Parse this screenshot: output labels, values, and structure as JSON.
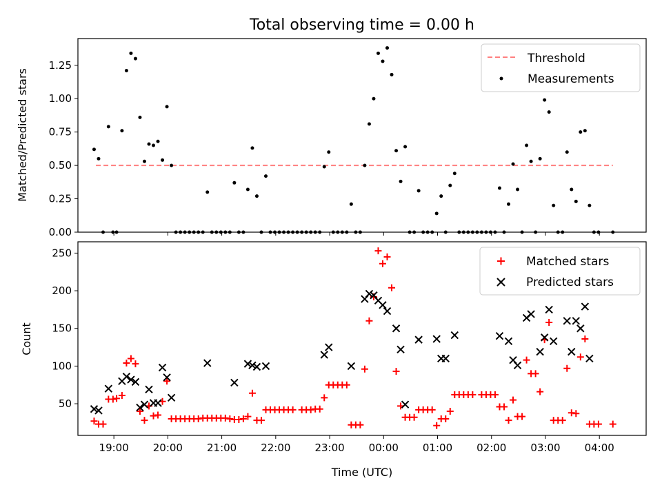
{
  "chart_data": [
    {
      "type": "scatter",
      "title": "Total observing time = 0.00 h",
      "ylabel": "Matched/Predicted stars",
      "xlabel": "",
      "xlim": [
        "18:20",
        "04:52"
      ],
      "ylim": [
        0,
        1.45
      ],
      "yticks": [
        "0.00",
        "0.25",
        "0.50",
        "0.75",
        "1.00",
        "1.25"
      ],
      "legend_position": "upper right",
      "legend": [
        "Threshold",
        "Measurements"
      ],
      "colors": {
        "threshold": "#ff7f7f",
        "measurements": "#000000"
      },
      "threshold": {
        "value": 0.5,
        "x_range": [
          "18:40",
          "04:15"
        ]
      },
      "measurements": [
        [
          "18:38",
          0.62
        ],
        [
          "18:43",
          0.55
        ],
        [
          "18:48",
          0.0
        ],
        [
          "18:54",
          0.79
        ],
        [
          "18:59",
          0.0
        ],
        [
          "19:03",
          0.0
        ],
        [
          "19:09",
          0.76
        ],
        [
          "19:14",
          1.21
        ],
        [
          "19:19",
          1.34
        ],
        [
          "19:24",
          1.3
        ],
        [
          "19:29",
          0.86
        ],
        [
          "19:34",
          0.53
        ],
        [
          "19:39",
          0.66
        ],
        [
          "19:44",
          0.65
        ],
        [
          "19:49",
          0.68
        ],
        [
          "19:54",
          0.54
        ],
        [
          "19:59",
          0.94
        ],
        [
          "20:04",
          0.5
        ],
        [
          "20:09",
          0.0
        ],
        [
          "20:14",
          0.0
        ],
        [
          "20:19",
          0.0
        ],
        [
          "20:24",
          0.0
        ],
        [
          "20:29",
          0.0
        ],
        [
          "20:34",
          0.0
        ],
        [
          "20:39",
          0.0
        ],
        [
          "20:44",
          0.3
        ],
        [
          "20:49",
          0.0
        ],
        [
          "20:54",
          0.0
        ],
        [
          "20:59",
          0.0
        ],
        [
          "21:04",
          0.0
        ],
        [
          "21:09",
          0.0
        ],
        [
          "21:14",
          0.37
        ],
        [
          "21:19",
          0.0
        ],
        [
          "21:24",
          0.0
        ],
        [
          "21:29",
          0.32
        ],
        [
          "21:34",
          0.63
        ],
        [
          "21:39",
          0.27
        ],
        [
          "21:44",
          0.0
        ],
        [
          "21:49",
          0.42
        ],
        [
          "21:54",
          0.0
        ],
        [
          "21:59",
          0.0
        ],
        [
          "22:04",
          0.0
        ],
        [
          "22:09",
          0.0
        ],
        [
          "22:14",
          0.0
        ],
        [
          "22:19",
          0.0
        ],
        [
          "22:24",
          0.0
        ],
        [
          "22:29",
          0.0
        ],
        [
          "22:34",
          0.0
        ],
        [
          "22:39",
          0.0
        ],
        [
          "22:44",
          0.0
        ],
        [
          "22:49",
          0.0
        ],
        [
          "22:54",
          0.49
        ],
        [
          "22:59",
          0.6
        ],
        [
          "23:04",
          0.0
        ],
        [
          "23:09",
          0.0
        ],
        [
          "23:14",
          0.0
        ],
        [
          "23:19",
          0.0
        ],
        [
          "23:24",
          0.21
        ],
        [
          "23:29",
          0.0
        ],
        [
          "23:34",
          0.0
        ],
        [
          "23:39",
          0.5
        ],
        [
          "23:44",
          0.81
        ],
        [
          "23:49",
          1.0
        ],
        [
          "23:54",
          1.34
        ],
        [
          "23:59",
          1.28
        ],
        [
          "00:04",
          1.38
        ],
        [
          "00:09",
          1.18
        ],
        [
          "00:14",
          0.61
        ],
        [
          "00:19",
          0.38
        ],
        [
          "00:24",
          0.64
        ],
        [
          "00:29",
          0.0
        ],
        [
          "00:34",
          0.0
        ],
        [
          "00:39",
          0.31
        ],
        [
          "00:44",
          0.0
        ],
        [
          "00:49",
          0.0
        ],
        [
          "00:54",
          0.0
        ],
        [
          "00:59",
          0.14
        ],
        [
          "01:04",
          0.27
        ],
        [
          "01:09",
          0.0
        ],
        [
          "01:14",
          0.35
        ],
        [
          "01:19",
          0.44
        ],
        [
          "01:24",
          0.0
        ],
        [
          "01:29",
          0.0
        ],
        [
          "01:34",
          0.0
        ],
        [
          "01:39",
          0.0
        ],
        [
          "01:44",
          0.0
        ],
        [
          "01:49",
          0.0
        ],
        [
          "01:54",
          0.0
        ],
        [
          "01:59",
          0.0
        ],
        [
          "02:04",
          0.0
        ],
        [
          "02:09",
          0.33
        ],
        [
          "02:14",
          0.0
        ],
        [
          "02:19",
          0.21
        ],
        [
          "02:24",
          0.51
        ],
        [
          "02:29",
          0.32
        ],
        [
          "02:34",
          0.0
        ],
        [
          "02:39",
          0.65
        ],
        [
          "02:44",
          0.53
        ],
        [
          "02:49",
          0.0
        ],
        [
          "02:54",
          0.55
        ],
        [
          "02:59",
          0.99
        ],
        [
          "03:04",
          0.9
        ],
        [
          "03:09",
          0.2
        ],
        [
          "03:14",
          0.0
        ],
        [
          "03:19",
          0.0
        ],
        [
          "03:24",
          0.6
        ],
        [
          "03:29",
          0.32
        ],
        [
          "03:34",
          0.23
        ],
        [
          "03:39",
          0.75
        ],
        [
          "03:44",
          0.76
        ],
        [
          "03:49",
          0.2
        ],
        [
          "03:54",
          0.0
        ],
        [
          "03:59",
          0.0
        ],
        [
          "04:15",
          0.0
        ]
      ]
    },
    {
      "type": "scatter",
      "title": "",
      "xlabel": "Time (UTC)",
      "ylabel": "Count",
      "xlim": [
        "18:20",
        "04:52"
      ],
      "ylim": [
        8,
        265
      ],
      "xticks": [
        "19:00",
        "20:00",
        "21:00",
        "22:00",
        "23:00",
        "00:00",
        "01:00",
        "02:00",
        "03:00",
        "04:00"
      ],
      "yticks": [
        "50",
        "100",
        "150",
        "200",
        "250"
      ],
      "legend_position": "upper right",
      "legend": [
        "Matched stars",
        "Predicted stars"
      ],
      "colors": {
        "matched": "#ff0000",
        "predicted": "#000000"
      },
      "series": [
        {
          "name": "Matched stars",
          "marker": "+",
          "points": [
            [
              "18:38",
              27
            ],
            [
              "18:43",
              23
            ],
            [
              "18:48",
              23
            ],
            [
              "18:54",
              56
            ],
            [
              "18:59",
              56
            ],
            [
              "19:03",
              57
            ],
            [
              "19:09",
              61
            ],
            [
              "19:14",
              104
            ],
            [
              "19:19",
              110
            ],
            [
              "19:24",
              103
            ],
            [
              "19:29",
              40
            ],
            [
              "19:34",
              28
            ],
            [
              "19:39",
              47
            ],
            [
              "19:44",
              34
            ],
            [
              "19:49",
              35
            ],
            [
              "19:54",
              53
            ],
            [
              "19:59",
              80
            ],
            [
              "20:04",
              30
            ],
            [
              "20:09",
              30
            ],
            [
              "20:14",
              30
            ],
            [
              "20:19",
              30
            ],
            [
              "20:24",
              30
            ],
            [
              "20:29",
              30
            ],
            [
              "20:34",
              30
            ],
            [
              "20:39",
              31
            ],
            [
              "20:44",
              31
            ],
            [
              "20:49",
              31
            ],
            [
              "20:54",
              31
            ],
            [
              "20:59",
              31
            ],
            [
              "21:04",
              31
            ],
            [
              "21:09",
              30
            ],
            [
              "21:14",
              29
            ],
            [
              "21:19",
              29
            ],
            [
              "21:24",
              30
            ],
            [
              "21:29",
              33
            ],
            [
              "21:34",
              64
            ],
            [
              "21:39",
              28
            ],
            [
              "21:44",
              28
            ],
            [
              "21:49",
              42
            ],
            [
              "21:54",
              42
            ],
            [
              "21:59",
              42
            ],
            [
              "22:04",
              42
            ],
            [
              "22:09",
              42
            ],
            [
              "22:14",
              42
            ],
            [
              "22:19",
              42
            ],
            [
              "22:29",
              42
            ],
            [
              "22:34",
              42
            ],
            [
              "22:39",
              42
            ],
            [
              "22:44",
              43
            ],
            [
              "22:49",
              43
            ],
            [
              "22:54",
              58
            ],
            [
              "22:59",
              75
            ],
            [
              "23:04",
              75
            ],
            [
              "23:09",
              75
            ],
            [
              "23:14",
              75
            ],
            [
              "23:19",
              75
            ],
            [
              "23:24",
              22
            ],
            [
              "23:29",
              22
            ],
            [
              "23:34",
              22
            ],
            [
              "23:39",
              96
            ],
            [
              "23:44",
              160
            ],
            [
              "23:49",
              192
            ],
            [
              "23:54",
              253
            ],
            [
              "23:59",
              236
            ],
            [
              "00:04",
              245
            ],
            [
              "00:09",
              204
            ],
            [
              "00:14",
              93
            ],
            [
              "00:19",
              47
            ],
            [
              "00:24",
              32
            ],
            [
              "00:29",
              32
            ],
            [
              "00:34",
              32
            ],
            [
              "00:39",
              42
            ],
            [
              "00:44",
              42
            ],
            [
              "00:49",
              42
            ],
            [
              "00:54",
              42
            ],
            [
              "00:59",
              21
            ],
            [
              "01:04",
              30
            ],
            [
              "01:09",
              30
            ],
            [
              "01:14",
              40
            ],
            [
              "01:19",
              62
            ],
            [
              "01:24",
              62
            ],
            [
              "01:29",
              62
            ],
            [
              "01:34",
              62
            ],
            [
              "01:39",
              62
            ],
            [
              "01:49",
              62
            ],
            [
              "01:54",
              62
            ],
            [
              "01:59",
              62
            ],
            [
              "02:04",
              62
            ],
            [
              "02:09",
              46
            ],
            [
              "02:14",
              46
            ],
            [
              "02:19",
              28
            ],
            [
              "02:24",
              55
            ],
            [
              "02:29",
              33
            ],
            [
              "02:34",
              33
            ],
            [
              "02:39",
              108
            ],
            [
              "02:44",
              90
            ],
            [
              "02:49",
              90
            ],
            [
              "02:54",
              66
            ],
            [
              "02:59",
              135
            ],
            [
              "03:04",
              158
            ],
            [
              "03:09",
              28
            ],
            [
              "03:14",
              28
            ],
            [
              "03:19",
              28
            ],
            [
              "03:24",
              97
            ],
            [
              "03:29",
              38
            ],
            [
              "03:34",
              37
            ],
            [
              "03:39",
              112
            ],
            [
              "03:44",
              136
            ],
            [
              "03:49",
              23
            ],
            [
              "03:54",
              23
            ],
            [
              "03:59",
              23
            ],
            [
              "04:15",
              23
            ]
          ]
        },
        {
          "name": "Predicted stars",
          "marker": "x",
          "points": [
            [
              "18:38",
              43
            ],
            [
              "18:43",
              41
            ],
            [
              "18:54",
              70
            ],
            [
              "19:09",
              80
            ],
            [
              "19:14",
              86
            ],
            [
              "19:19",
              82
            ],
            [
              "19:24",
              79
            ],
            [
              "19:29",
              45
            ],
            [
              "19:34",
              49
            ],
            [
              "19:39",
              69
            ],
            [
              "19:44",
              51
            ],
            [
              "19:49",
              51
            ],
            [
              "19:54",
              98
            ],
            [
              "19:59",
              85
            ],
            [
              "20:04",
              58
            ],
            [
              "20:44",
              104
            ],
            [
              "21:14",
              78
            ],
            [
              "21:29",
              103
            ],
            [
              "21:34",
              101
            ],
            [
              "21:39",
              99
            ],
            [
              "21:49",
              100
            ],
            [
              "22:54",
              115
            ],
            [
              "22:59",
              125
            ],
            [
              "23:24",
              100
            ],
            [
              "23:39",
              189
            ],
            [
              "23:44",
              196
            ],
            [
              "23:49",
              194
            ],
            [
              "23:54",
              187
            ],
            [
              "23:59",
              181
            ],
            [
              "00:04",
              173
            ],
            [
              "00:14",
              150
            ],
            [
              "00:19",
              122
            ],
            [
              "00:24",
              49
            ],
            [
              "00:39",
              135
            ],
            [
              "00:59",
              136
            ],
            [
              "01:04",
              110
            ],
            [
              "01:09",
              110
            ],
            [
              "01:19",
              141
            ],
            [
              "02:09",
              140
            ],
            [
              "02:19",
              133
            ],
            [
              "02:24",
              108
            ],
            [
              "02:29",
              101
            ],
            [
              "02:39",
              164
            ],
            [
              "02:44",
              169
            ],
            [
              "02:54",
              119
            ],
            [
              "02:59",
              138
            ],
            [
              "03:04",
              175
            ],
            [
              "03:09",
              133
            ],
            [
              "03:24",
              160
            ],
            [
              "03:29",
              119
            ],
            [
              "03:34",
              160
            ],
            [
              "03:39",
              150
            ],
            [
              "03:44",
              179
            ],
            [
              "03:49",
              110
            ]
          ]
        }
      ]
    }
  ]
}
